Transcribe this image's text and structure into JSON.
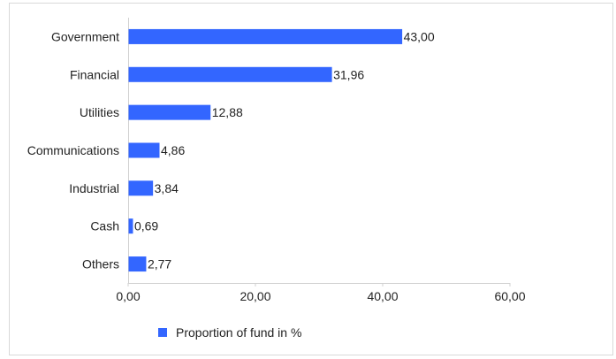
{
  "chart_data": {
    "type": "bar",
    "orientation": "horizontal",
    "categories": [
      "Government",
      "Financial",
      "Utilities",
      "Communications",
      "Industrial",
      "Cash",
      "Others"
    ],
    "series": [
      {
        "name": "Proportion of fund in %",
        "values": [
          43.0,
          31.96,
          12.88,
          4.86,
          3.84,
          0.69,
          2.77
        ],
        "data_labels": [
          "43,00",
          "31,96",
          "12,88",
          "4,86",
          "3,84",
          "0,69",
          "2,77"
        ],
        "color": "#3366ff"
      }
    ],
    "xlim": [
      0,
      60
    ],
    "x_ticks": [
      0,
      20,
      40,
      60
    ],
    "x_tick_labels": [
      "0,00",
      "20,00",
      "40,00",
      "60,00"
    ],
    "grid": false,
    "legend_position": "bottom-center"
  }
}
